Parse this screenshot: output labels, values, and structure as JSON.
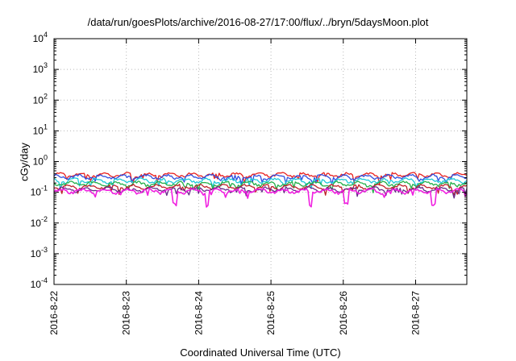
{
  "chart_data": {
    "type": "line",
    "title": "/data/run/goesPlots/archive/2016-08-27/17:00/flux/../bryn/5daysMoon.plot",
    "xlabel": "Coordinated Universal Time (UTC)",
    "ylabel": "cGy/day",
    "yscale": "log",
    "ylim": [
      0.0001,
      10000
    ],
    "y_ticks": [
      {
        "base": "10",
        "exp": "-4"
      },
      {
        "base": "10",
        "exp": "-3"
      },
      {
        "base": "10",
        "exp": "-2"
      },
      {
        "base": "10",
        "exp": "-1"
      },
      {
        "base": "10",
        "exp": "0"
      },
      {
        "base": "10",
        "exp": "1"
      },
      {
        "base": "10",
        "exp": "2"
      },
      {
        "base": "10",
        "exp": "3"
      },
      {
        "base": "10",
        "exp": "4"
      }
    ],
    "x_range": [
      "2016-08-22 00:00",
      "2016-08-27 17:00"
    ],
    "x_ticks": [
      "2016-8-22",
      "2016-8-23",
      "2016-8-24",
      "2016-8-25",
      "2016-8-26",
      "2016-8-27"
    ],
    "grid": true,
    "series": [
      {
        "color": "#e8201f",
        "level": 0.37
      },
      {
        "color": "#2f4fe0",
        "level": 0.32
      },
      {
        "color": "#1ec8d8",
        "level": 0.24
      },
      {
        "color": "#23b04a",
        "level": 0.19
      },
      {
        "color": "#c0202a",
        "level": 0.15
      },
      {
        "color": "#6a2a8a",
        "level": 0.125
      },
      {
        "color": "#f020e0",
        "level": 0.11,
        "dips": [
          "2016-08-23 16:00",
          "2016-08-25 13:00",
          "2016-08-24 03:00",
          "2016-08-26 01:00",
          "2016-08-27 06:00"
        ]
      }
    ]
  }
}
